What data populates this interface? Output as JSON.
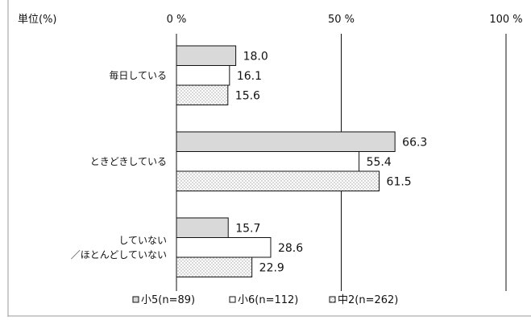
{
  "chart_data": {
    "type": "bar",
    "orientation": "horizontal",
    "unit_label": "単位(%)",
    "categories": [
      "毎日している",
      "ときどきしている",
      "していない\n／ほとんどしていない"
    ],
    "series": [
      {
        "name": "小5(n=89)",
        "values": [
          18.0,
          66.3,
          15.7
        ],
        "fill": "gray"
      },
      {
        "name": "小6(n=112)",
        "values": [
          16.1,
          55.4,
          28.6
        ],
        "fill": "white"
      },
      {
        "name": "中2(n=262)",
        "values": [
          15.6,
          61.5,
          22.9
        ],
        "fill": "dotted"
      }
    ],
    "xlim": [
      0,
      100
    ],
    "xticks": [
      0,
      50,
      100
    ],
    "tick_labels": [
      "0 %",
      "50 %",
      "100 %"
    ],
    "legend_position": "bottom",
    "grid": true
  },
  "colors": {
    "gray_fill": "#d9d9d9",
    "white_fill": "#ffffff",
    "dot_color": "#9a9a9a",
    "stroke": "#111111"
  }
}
